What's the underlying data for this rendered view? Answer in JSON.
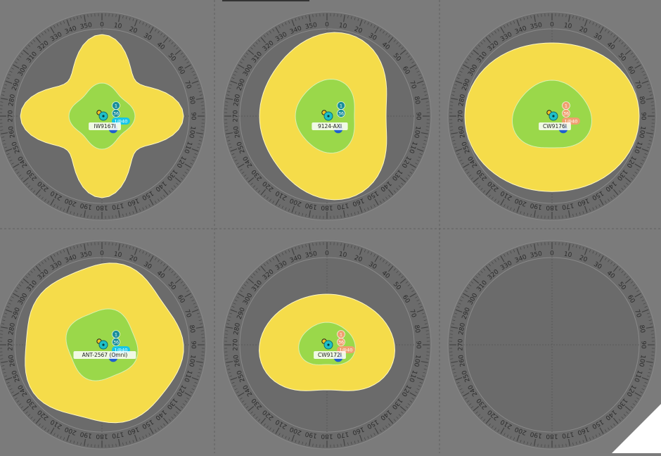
{
  "colors": {
    "background": "#7b7b7b",
    "dial": "#6b6b6b",
    "dial_ring": "#8a8a8a",
    "tick": "#3f3f3f",
    "coverage_outer": "#f5dc4a",
    "coverage_inner": "#9ad84a",
    "ap_teal": "#1fc0c8",
    "badge_teal": "#1a8f9a",
    "badge_orange": "#f0a070",
    "badge_cyan": "#16c6e8",
    "pie_blue": "#1f5fcf"
  },
  "angle_labels": [
    "0",
    "10",
    "20",
    "30",
    "40",
    "50",
    "60",
    "70",
    "80",
    "90",
    "100",
    "110",
    "120",
    "130",
    "140",
    "150",
    "160",
    "170",
    "180",
    "190",
    "200",
    "210",
    "220",
    "230",
    "240",
    "250",
    "260",
    "270",
    "280",
    "290",
    "300",
    "310",
    "320",
    "330",
    "340",
    "350"
  ],
  "panels": [
    {
      "id": "p1",
      "antenna_label": "IW9167I",
      "badges": [
        "1",
        "36"
      ],
      "badge_color": "teal",
      "channel": "1@40",
      "channel_color": "cyan",
      "pattern": "clover"
    },
    {
      "id": "p2",
      "antenna_label": "9124-AXI",
      "badges": [
        "1",
        "36"
      ],
      "badge_color": "teal",
      "channel": "",
      "channel_color": "",
      "pattern": "tall"
    },
    {
      "id": "p3",
      "antenna_label": "CW9176I",
      "badges": [
        "1",
        "36"
      ],
      "badge_color": "orange",
      "channel": "1@40",
      "channel_color": "orange",
      "pattern": "wide"
    },
    {
      "id": "p4",
      "antenna_label": "ANT-2567 (Omni)",
      "badges": [
        "1",
        "36"
      ],
      "badge_color": "teal",
      "channel": "1@40",
      "channel_color": "cyan",
      "pattern": "omni"
    },
    {
      "id": "p5",
      "antenna_label": "CW9172I",
      "badges": [
        "1",
        "36"
      ],
      "badge_color": "orange",
      "channel": "1@40",
      "channel_color": "orange",
      "pattern": "lobe"
    },
    {
      "id": "p6",
      "antenna_label": "",
      "badges": [],
      "badge_color": "",
      "channel": "",
      "channel_color": "",
      "pattern": "empty"
    }
  ]
}
